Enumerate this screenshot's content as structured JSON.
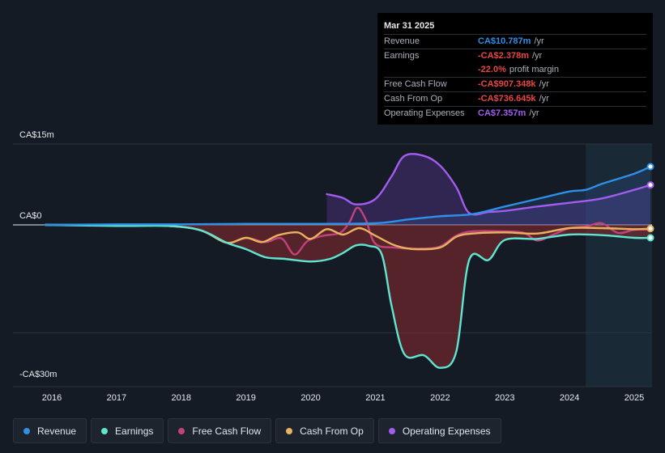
{
  "tooltip": {
    "date": "Mar 31 2025",
    "rows": [
      {
        "label": "Revenue",
        "value": "CA$10.787m",
        "unit": "/yr",
        "color": "#2e90e8"
      },
      {
        "label": "Earnings",
        "value": "-CA$2.378m",
        "unit": "/yr",
        "color": "#e84545"
      },
      {
        "label": "",
        "value": "-22.0%",
        "unit": "profit margin",
        "color": "#e84545"
      },
      {
        "label": "Free Cash Flow",
        "value": "-CA$907.348k",
        "unit": "/yr",
        "color": "#e84545"
      },
      {
        "label": "Cash From Op",
        "value": "-CA$736.645k",
        "unit": "/yr",
        "color": "#e84545"
      },
      {
        "label": "Operating Expenses",
        "value": "CA$7.357m",
        "unit": "/yr",
        "color": "#a25cf0"
      }
    ]
  },
  "legend": [
    {
      "label": "Revenue",
      "color": "#2e90e8"
    },
    {
      "label": "Earnings",
      "color": "#5ee6d0"
    },
    {
      "label": "Free Cash Flow",
      "color": "#c3427e"
    },
    {
      "label": "Cash From Op",
      "color": "#e9b25e"
    },
    {
      "label": "Operating Expenses",
      "color": "#a25cf0"
    }
  ],
  "chart_data": {
    "type": "line",
    "y_tick_labels": [
      "CA$15m",
      "CA$0",
      "-CA$30m"
    ],
    "ylim": [
      -30,
      15
    ],
    "xlim": [
      2015.8,
      2025.25
    ],
    "x_ticks": [
      2016,
      2017,
      2018,
      2019,
      2020,
      2021,
      2022,
      2023,
      2024,
      2025
    ],
    "x_tick_labels": [
      "2016",
      "2017",
      "2018",
      "2019",
      "2020",
      "2021",
      "2022",
      "2023",
      "2024",
      "2025"
    ],
    "forecast_start": 2024.25,
    "unit": "CA$m",
    "series": [
      {
        "name": "Revenue",
        "color": "#2e90e8",
        "points": [
          [
            2015.9,
            0
          ],
          [
            2017,
            0.1
          ],
          [
            2018,
            0.1
          ],
          [
            2019,
            0.2
          ],
          [
            2020,
            0.2
          ],
          [
            2021,
            0.3
          ],
          [
            2021.5,
            1.0
          ],
          [
            2022,
            1.6
          ],
          [
            2022.5,
            2.0
          ],
          [
            2023,
            3.4
          ],
          [
            2023.5,
            4.8
          ],
          [
            2024,
            6.2
          ],
          [
            2024.25,
            6.5
          ],
          [
            2024.5,
            7.6
          ],
          [
            2025,
            9.5
          ],
          [
            2025.25,
            10.8
          ]
        ]
      },
      {
        "name": "Earnings",
        "color": "#5ee6d0",
        "points": [
          [
            2015.9,
            0
          ],
          [
            2017,
            -0.2
          ],
          [
            2017.8,
            -0.2
          ],
          [
            2018.3,
            -1.0
          ],
          [
            2018.7,
            -3.3
          ],
          [
            2019,
            -4.5
          ],
          [
            2019.3,
            -6.0
          ],
          [
            2019.6,
            -6.3
          ],
          [
            2020,
            -6.8
          ],
          [
            2020.3,
            -6.3
          ],
          [
            2020.5,
            -5.2
          ],
          [
            2020.7,
            -3.8
          ],
          [
            2020.9,
            -3.9
          ],
          [
            2021.1,
            -5.5
          ],
          [
            2021.25,
            -15
          ],
          [
            2021.45,
            -24.0
          ],
          [
            2021.75,
            -24.2
          ],
          [
            2022,
            -26.5
          ],
          [
            2022.25,
            -23.5
          ],
          [
            2022.45,
            -6.5
          ],
          [
            2022.75,
            -6.5
          ],
          [
            2023,
            -2.8
          ],
          [
            2023.5,
            -2.6
          ],
          [
            2024,
            -1.8
          ],
          [
            2024.5,
            -1.9
          ],
          [
            2025,
            -2.4
          ],
          [
            2025.25,
            -2.4
          ]
        ]
      },
      {
        "name": "Free Cash Flow",
        "color": "#c3427e",
        "points": [
          [
            2015.9,
            0
          ],
          [
            2017,
            0
          ],
          [
            2017.8,
            -0.2
          ],
          [
            2018.3,
            -1.0
          ],
          [
            2018.7,
            -3.3
          ],
          [
            2019,
            -2.4
          ],
          [
            2019.3,
            -3.2
          ],
          [
            2019.55,
            -2.5
          ],
          [
            2019.75,
            -5.5
          ],
          [
            2019.95,
            -3.0
          ],
          [
            2020.2,
            -2.0
          ],
          [
            2020.45,
            -1.5
          ],
          [
            2020.6,
            0.5
          ],
          [
            2020.72,
            3.2
          ],
          [
            2020.85,
            1.0
          ],
          [
            2021,
            -3.5
          ],
          [
            2021.3,
            -4.2
          ],
          [
            2021.7,
            -4.4
          ],
          [
            2022,
            -4.0
          ],
          [
            2022.25,
            -2.0
          ],
          [
            2022.5,
            -1.2
          ],
          [
            2023,
            -1.2
          ],
          [
            2023.3,
            -1.5
          ],
          [
            2023.5,
            -2.9
          ],
          [
            2023.75,
            -1.8
          ],
          [
            2024,
            -0.6
          ],
          [
            2024.25,
            -0.3
          ],
          [
            2024.5,
            0.3
          ],
          [
            2024.75,
            -1.5
          ],
          [
            2025,
            -0.9
          ],
          [
            2025.25,
            -0.9
          ]
        ]
      },
      {
        "name": "Cash From Op",
        "color": "#e9b25e",
        "points": [
          [
            2015.9,
            0
          ],
          [
            2017,
            0
          ],
          [
            2017.8,
            -0.2
          ],
          [
            2018.3,
            -1.0
          ],
          [
            2018.7,
            -3.3
          ],
          [
            2019,
            -2.4
          ],
          [
            2019.25,
            -3.2
          ],
          [
            2019.5,
            -1.9
          ],
          [
            2019.8,
            -1.4
          ],
          [
            2020,
            -2.6
          ],
          [
            2020.25,
            -0.8
          ],
          [
            2020.5,
            -1.8
          ],
          [
            2020.75,
            -0.6
          ],
          [
            2021,
            -2.0
          ],
          [
            2021.3,
            -3.8
          ],
          [
            2021.6,
            -4.5
          ],
          [
            2022,
            -4.2
          ],
          [
            2022.25,
            -2.2
          ],
          [
            2022.5,
            -1.6
          ],
          [
            2023,
            -1.4
          ],
          [
            2023.5,
            -1.6
          ],
          [
            2024,
            -0.6
          ],
          [
            2024.5,
            -0.6
          ],
          [
            2025,
            -0.8
          ],
          [
            2025.25,
            -0.7
          ]
        ]
      },
      {
        "name": "Operating Expenses",
        "color": "#a25cf0",
        "points": [
          [
            2020.25,
            5.7
          ],
          [
            2020.5,
            5.0
          ],
          [
            2020.7,
            3.8
          ],
          [
            2021,
            4.8
          ],
          [
            2021.25,
            9.0
          ],
          [
            2021.45,
            12.8
          ],
          [
            2021.75,
            12.8
          ],
          [
            2022,
            11.0
          ],
          [
            2022.25,
            7.0
          ],
          [
            2022.45,
            2.2
          ],
          [
            2022.75,
            2.4
          ],
          [
            2023,
            2.6
          ],
          [
            2023.5,
            3.4
          ],
          [
            2024,
            4.1
          ],
          [
            2024.5,
            4.9
          ],
          [
            2025,
            6.5
          ],
          [
            2025.25,
            7.4
          ]
        ]
      }
    ]
  }
}
